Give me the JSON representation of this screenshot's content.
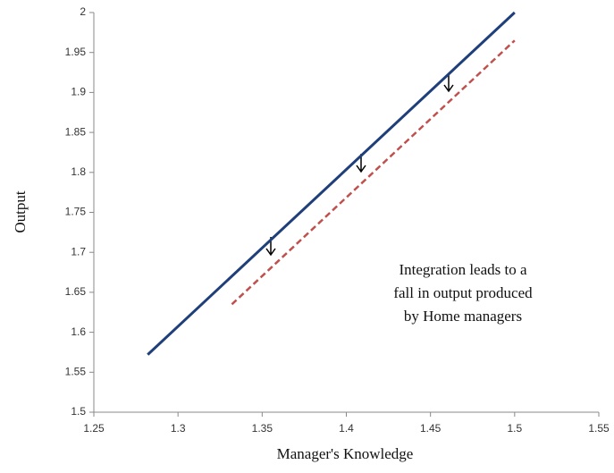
{
  "chart_data": {
    "type": "line",
    "xlabel": "Manager's Knowledge",
    "ylabel": "Output",
    "annotation": [
      "Integration leads to a",
      "fall in output produced",
      "by Home managers"
    ],
    "series": [
      {
        "color": "#1f3f7a",
        "dash": false,
        "x": [
          1.282,
          1.5
        ],
        "values": [
          1.572,
          2.0
        ]
      },
      {
        "color": "#c0504d",
        "dash": true,
        "x": [
          1.332,
          1.5
        ],
        "values": [
          1.635,
          1.965
        ]
      }
    ],
    "xlim": [
      1.25,
      1.55
    ],
    "xticks": [
      1.25,
      1.3,
      1.35,
      1.4,
      1.45,
      1.5,
      1.55
    ],
    "ylim": [
      1.5,
      2
    ],
    "yticks": [
      1.5,
      1.55,
      1.6,
      1.65,
      1.7,
      1.75,
      1.8,
      1.85,
      1.9,
      1.95,
      2
    ]
  }
}
